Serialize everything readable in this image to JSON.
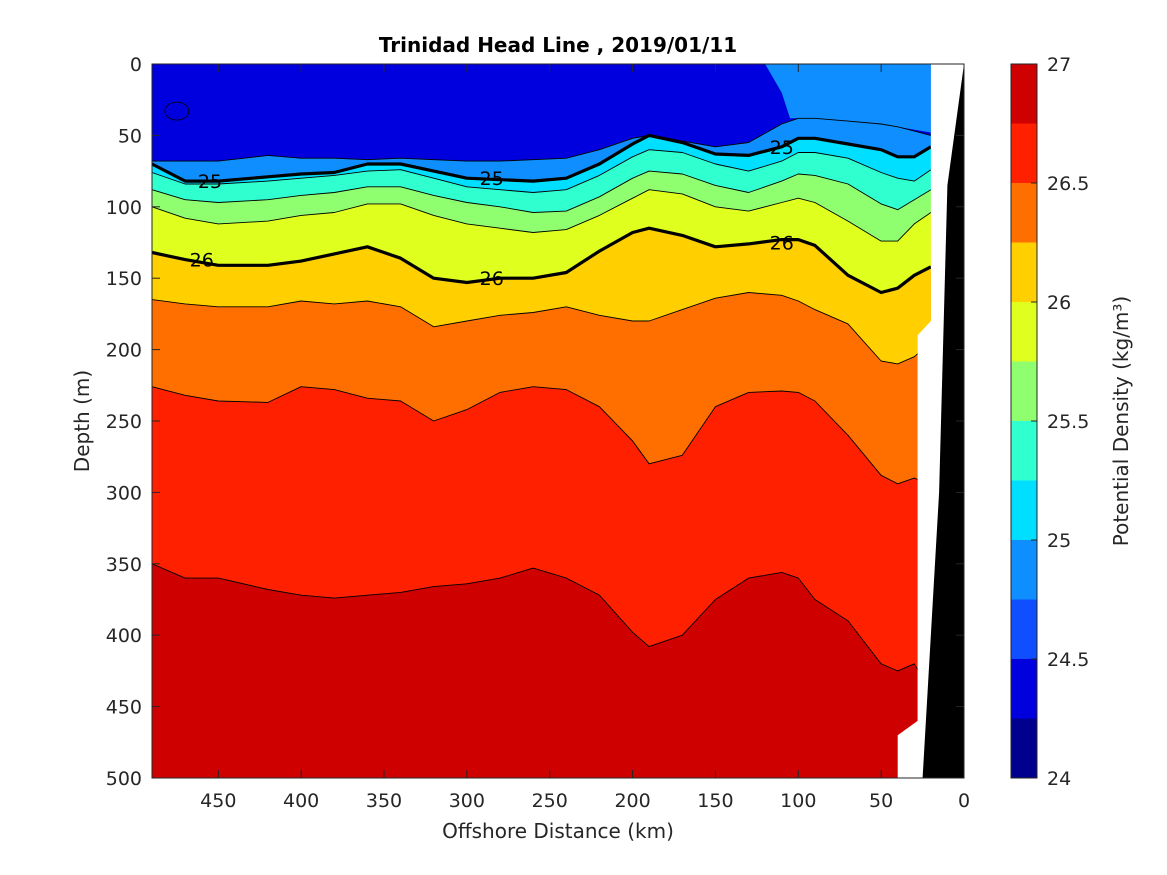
{
  "chart_data": {
    "type": "contourf",
    "title": "Trinidad Head Line , 2019/01/11",
    "xlabel": "Offshore Distance (km)",
    "ylabel": "Depth (m)",
    "colorbar_label": "Potential Density (kg/m³)",
    "xlim": [
      490,
      0
    ],
    "ylim": [
      0,
      500
    ],
    "xticks": [
      450,
      400,
      350,
      300,
      250,
      200,
      150,
      100,
      50,
      0
    ],
    "yticks": [
      0,
      50,
      100,
      150,
      200,
      250,
      300,
      350,
      400,
      450,
      500
    ],
    "clim": [
      24,
      27
    ],
    "colorbar_ticks": [
      24,
      24.5,
      25,
      25.5,
      26,
      26.5,
      27
    ],
    "levels": [
      24.25,
      24.5,
      24.75,
      25,
      25.25,
      25.5,
      25.75,
      26,
      26.25,
      26.5,
      26.75
    ],
    "colors": [
      "#00008f",
      "#0000df",
      "#0f4fff",
      "#0f8fff",
      "#00dfff",
      "#30ffcf",
      "#8fff6f",
      "#dfff1f",
      "#ffcf00",
      "#ff6f00",
      "#ff2000",
      "#cf0000"
    ],
    "labeled_contours": [
      25,
      26
    ],
    "contour_labels": {
      "25": [
        "25",
        "25",
        "25"
      ],
      "26": [
        "26",
        "26",
        "26"
      ]
    },
    "bathymetry_color": "#000000",
    "isopycnal_depths": {
      "x": [
        490,
        470,
        450,
        420,
        400,
        380,
        360,
        340,
        320,
        300,
        280,
        260,
        240,
        220,
        200,
        190,
        170,
        150,
        130,
        110,
        100,
        90,
        70,
        50,
        40,
        30,
        20
      ],
      "24.75": [
        68,
        68,
        68,
        64,
        66,
        66,
        67,
        66,
        67,
        68,
        68,
        67,
        66,
        60,
        52,
        50,
        54,
        58,
        55,
        42,
        38,
        38,
        40,
        42,
        44,
        47,
        50
      ],
      "25.0": [
        70,
        82,
        82,
        79,
        77,
        76,
        70,
        70,
        75,
        80,
        81,
        82,
        80,
        70,
        56,
        50,
        55,
        63,
        64,
        58,
        52,
        52,
        56,
        60,
        65,
        65,
        58
      ],
      "25.25": [
        76,
        84,
        84,
        82,
        80,
        78,
        75,
        74,
        80,
        86,
        88,
        90,
        88,
        78,
        65,
        60,
        62,
        70,
        75,
        68,
        62,
        62,
        66,
        76,
        80,
        82,
        74
      ],
      "25.5": [
        88,
        95,
        97,
        95,
        92,
        90,
        86,
        86,
        92,
        97,
        100,
        104,
        103,
        93,
        80,
        75,
        77,
        85,
        90,
        82,
        77,
        78,
        84,
        98,
        102,
        95,
        88
      ],
      "25.75": [
        100,
        108,
        112,
        110,
        106,
        104,
        98,
        98,
        106,
        112,
        115,
        118,
        116,
        106,
        94,
        88,
        91,
        100,
        103,
        97,
        94,
        97,
        110,
        124,
        124,
        112,
        104
      ],
      "26.0": [
        132,
        137,
        141,
        141,
        138,
        133,
        128,
        136,
        150,
        153,
        150,
        150,
        146,
        131,
        118,
        115,
        120,
        128,
        126,
        123,
        123,
        127,
        148,
        160,
        157,
        148,
        142
      ],
      "26.25": [
        165,
        168,
        170,
        170,
        166,
        168,
        166,
        170,
        184,
        180,
        176,
        174,
        170,
        176,
        180,
        180,
        172,
        164,
        160,
        162,
        166,
        172,
        182,
        208,
        210,
        205,
        195
      ],
      "26.5": [
        226,
        232,
        236,
        237,
        226,
        228,
        234,
        236,
        250,
        242,
        230,
        226,
        228,
        240,
        264,
        280,
        274,
        240,
        230,
        229,
        230,
        236,
        260,
        288,
        294,
        290,
        295
      ],
      "26.75": [
        350,
        360,
        360,
        368,
        372,
        374,
        372,
        370,
        366,
        364,
        360,
        353,
        360,
        372,
        398,
        408,
        400,
        375,
        360,
        356,
        360,
        375,
        390,
        420,
        425,
        420,
        440
      ]
    }
  }
}
